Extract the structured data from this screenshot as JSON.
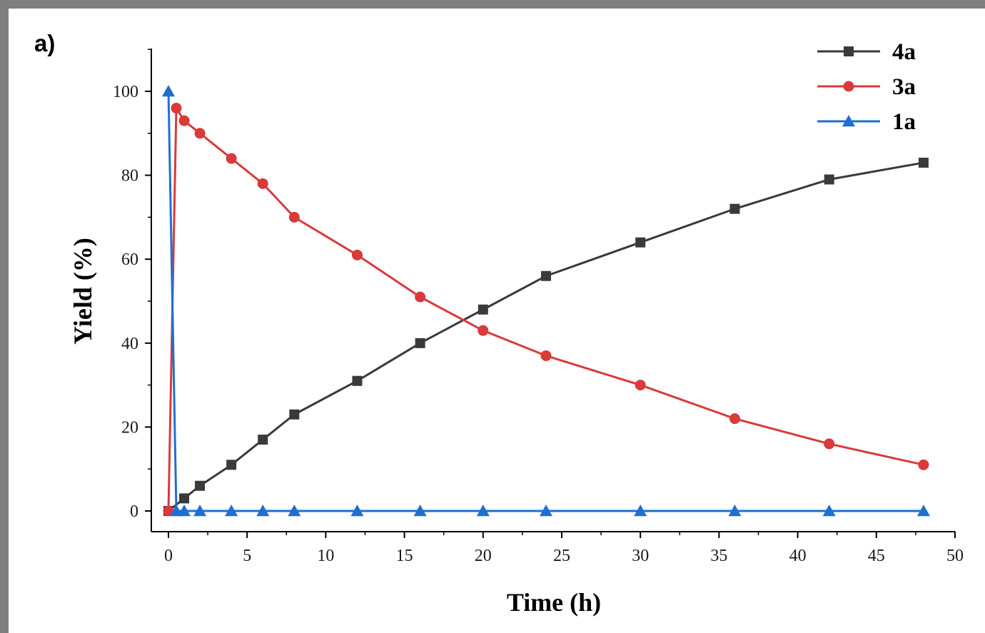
{
  "panel_label": "a)",
  "chart_data": {
    "type": "line",
    "xlabel": "Time (h)",
    "ylabel": "Yield (%)",
    "xlim": [
      -1,
      50
    ],
    "ylim": [
      -5,
      110
    ],
    "xticks": [
      0,
      5,
      10,
      15,
      20,
      25,
      30,
      35,
      40,
      45,
      50
    ],
    "yticks": [
      0,
      20,
      40,
      60,
      80,
      100
    ],
    "legend_position": "top-right",
    "grid": false,
    "series": [
      {
        "name": "4a",
        "color": "#3a3a3a",
        "marker": "square",
        "x": [
          0,
          1,
          2,
          4,
          6,
          8,
          12,
          16,
          20,
          24,
          30,
          36,
          42,
          48
        ],
        "y": [
          0,
          3,
          6,
          11,
          17,
          23,
          31,
          40,
          48,
          56,
          64,
          72,
          79,
          83
        ]
      },
      {
        "name": "3a",
        "color": "#d93a3a",
        "marker": "circle",
        "x": [
          0,
          0.5,
          1,
          2,
          4,
          6,
          8,
          12,
          16,
          20,
          24,
          30,
          36,
          42,
          48
        ],
        "y": [
          0,
          96,
          93,
          90,
          84,
          78,
          70,
          61,
          51,
          43,
          37,
          30,
          22,
          16,
          11
        ]
      },
      {
        "name": "1a",
        "color": "#1f6fd1",
        "marker": "triangle",
        "x": [
          0,
          0.5,
          1,
          2,
          4,
          6,
          8,
          12,
          16,
          20,
          24,
          30,
          36,
          42,
          48
        ],
        "y": [
          100,
          0,
          0,
          0,
          0,
          0,
          0,
          0,
          0,
          0,
          0,
          0,
          0,
          0,
          0
        ]
      }
    ]
  }
}
